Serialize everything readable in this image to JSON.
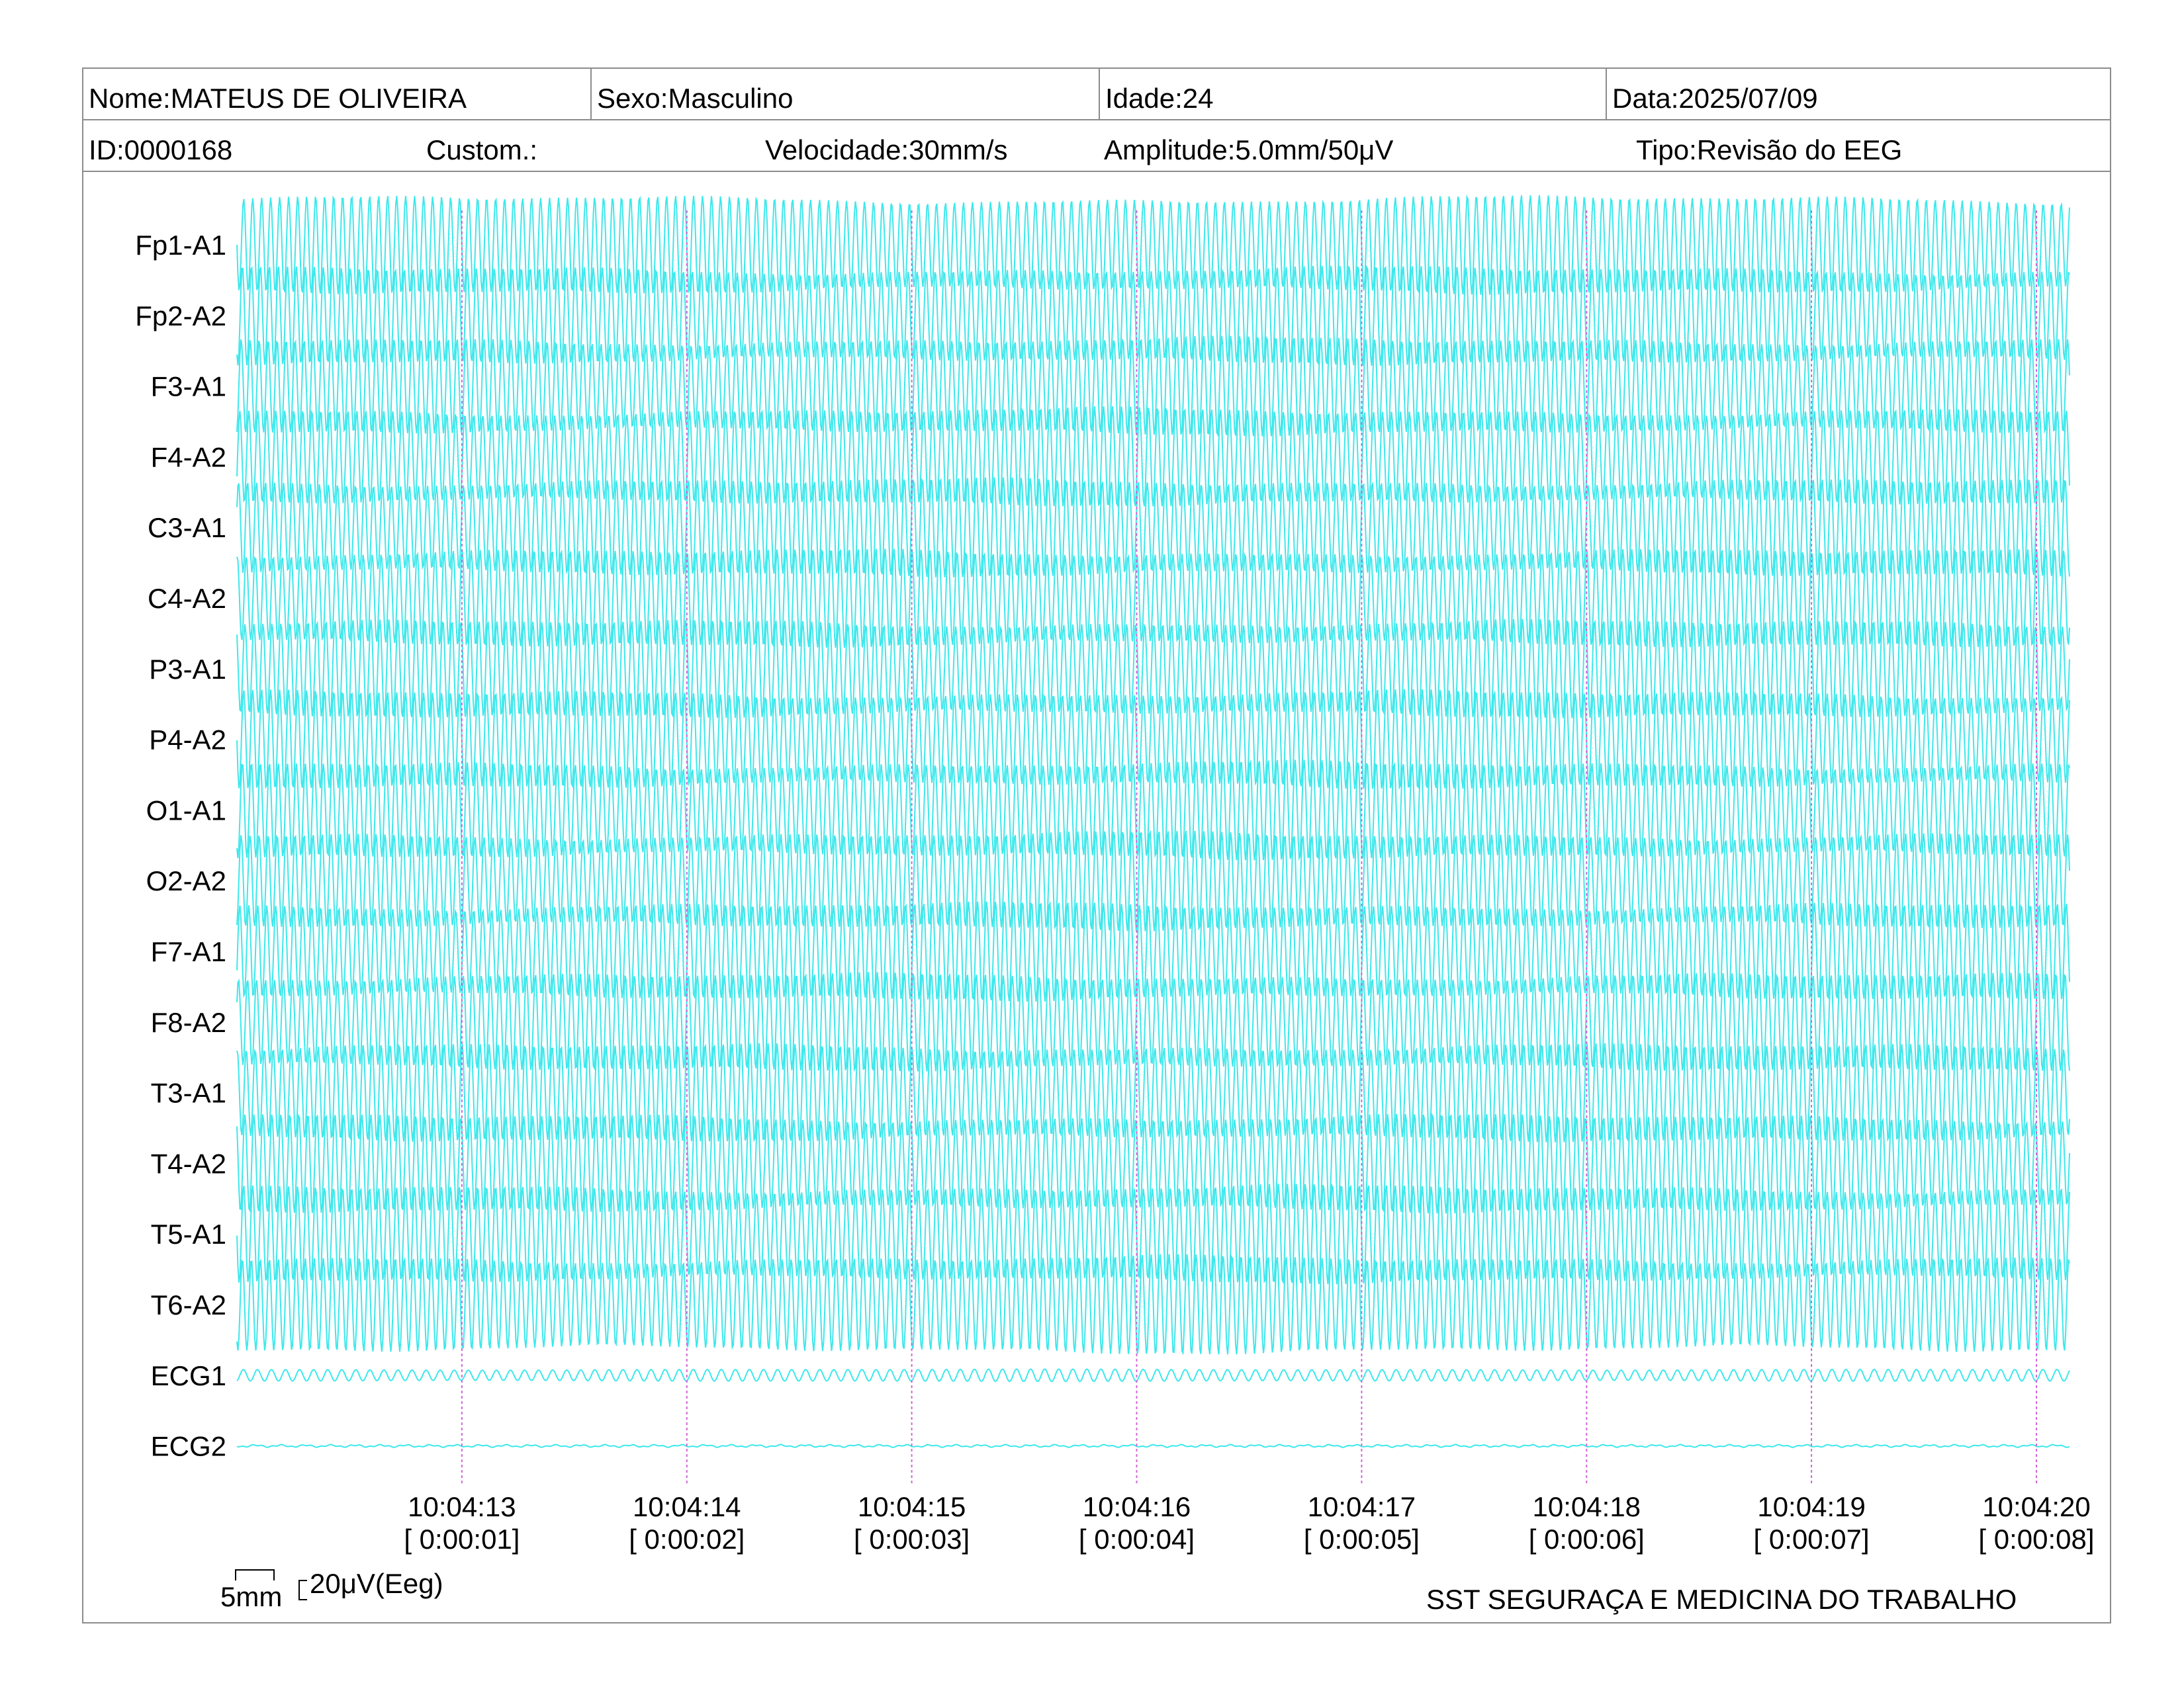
{
  "header": {
    "name": "Nome:MATEUS DE OLIVEIRA",
    "sex": "Sexo:Masculino",
    "age": "Idade:24",
    "date": "Data:2025/07/09",
    "id": "ID:0000168",
    "custom": "Custom.:",
    "speed": "Velocidade:30mm/s",
    "amplitude": "Amplitude:5.0mm/50μV",
    "type": "Tipo:Revisão do EEG"
  },
  "scale": {
    "time_label": "5mm",
    "amp_label": "20μV(Eeg)"
  },
  "footer": {
    "organization": "SST SEGURAÇA E MEDICINA DO TRABALHO"
  },
  "colors": {
    "trace": "#3de8ec",
    "marker": "#d066d6",
    "border": "#8c8c8c"
  },
  "chart_data": {
    "type": "line",
    "channels": [
      "Fp1-A1",
      "Fp2-A2",
      "F3-A1",
      "F4-A2",
      "C3-A1",
      "C4-A2",
      "P3-A1",
      "P4-A2",
      "O1-A1",
      "O2-A2",
      "F7-A1",
      "F8-A2",
      "T3-A1",
      "T4-A2",
      "T5-A1",
      "T6-A2",
      "ECG1",
      "ECG2"
    ],
    "time_markers": [
      {
        "clock": "10:04:13",
        "elapsed": "[ 0:00:01]"
      },
      {
        "clock": "10:04:14",
        "elapsed": "[ 0:00:02]"
      },
      {
        "clock": "10:04:15",
        "elapsed": "[ 0:00:03]"
      },
      {
        "clock": "10:04:16",
        "elapsed": "[ 0:00:04]"
      },
      {
        "clock": "10:04:17",
        "elapsed": "[ 0:00:05]"
      },
      {
        "clock": "10:04:18",
        "elapsed": "[ 0:00:06]"
      },
      {
        "clock": "10:04:19",
        "elapsed": "[ 0:00:07]"
      },
      {
        "clock": "10:04:20",
        "elapsed": "[ 0:00:08]"
      }
    ],
    "x_range_seconds": [
      0,
      8.15
    ],
    "eeg_frequency_hz": 25,
    "ecg1_frequency_hz": 16,
    "eeg_relative_amplitude": 0.65,
    "ecg1_relative_amplitude": 0.08,
    "ecg2_relative_amplitude": 0.02
  }
}
